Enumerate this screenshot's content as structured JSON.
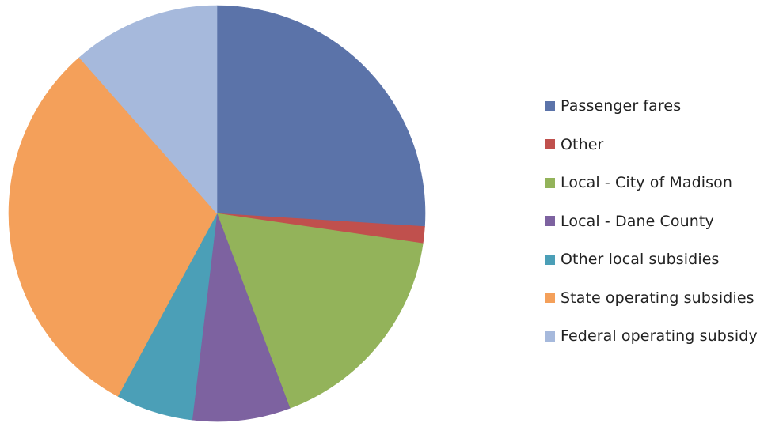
{
  "chart_data": {
    "type": "pie",
    "title": "",
    "start_angle_deg": 0,
    "direction": "clockwise",
    "legend_position": "right",
    "slices": [
      {
        "label": "Passenger fares",
        "value": 26.0,
        "color": "#5b73a9"
      },
      {
        "label": "Other",
        "value": 1.3,
        "color": "#c0504d"
      },
      {
        "label": "Local - City of Madison",
        "value": 17.0,
        "color": "#93b35a"
      },
      {
        "label": "Local - Dane County",
        "value": 7.6,
        "color": "#7d62a0"
      },
      {
        "label": "Other local subsidies",
        "value": 6.0,
        "color": "#4b9fb7"
      },
      {
        "label": "State operating subsidies",
        "value": 30.6,
        "color": "#f4a05a"
      },
      {
        "label": "Federal operating subsidy",
        "value": 11.5,
        "color": "#a6b9dc"
      }
    ]
  }
}
